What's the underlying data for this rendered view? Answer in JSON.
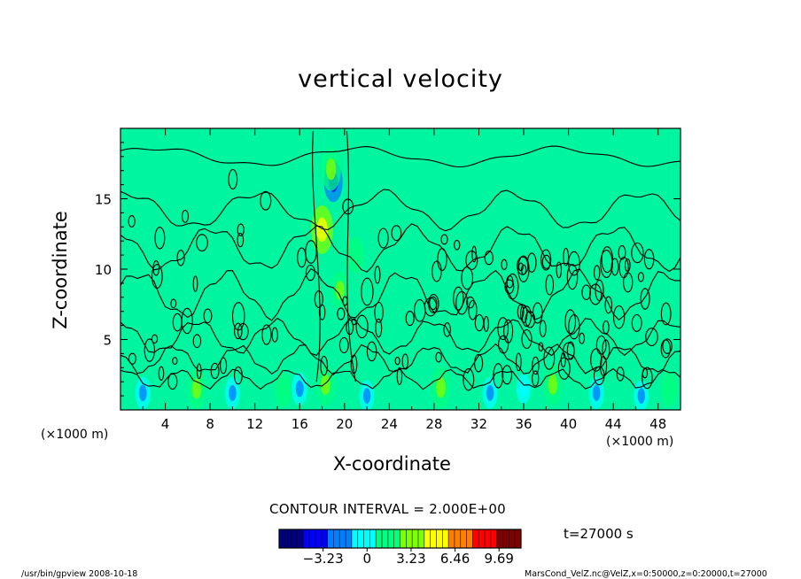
{
  "chart_data": {
    "type": "heatmap",
    "title": "vertical velocity",
    "xlabel": "X-coordinate",
    "ylabel": "Z-coordinate",
    "x_unit": "(×1000 m)",
    "z_unit": "(×1000 m)",
    "xlim": [
      0,
      50
    ],
    "ylim": [
      0,
      20
    ],
    "x_ticks": [
      4,
      8,
      12,
      16,
      20,
      24,
      28,
      32,
      36,
      40,
      44,
      48
    ],
    "y_ticks": [
      5,
      10,
      15
    ],
    "contour_interval": "CONTOUR INTERVAL = 2.000E+00",
    "time_label": "t=27000 s",
    "colorbar": {
      "ticks": [
        -3.23,
        0,
        3.23,
        6.46,
        9.69
      ],
      "tick_labels": [
        "−3.23",
        "0",
        "3.23",
        "6.46",
        "9.69"
      ],
      "range": [
        -6.46,
        11.3
      ],
      "colors": [
        "#00007f",
        "#0000ff",
        "#007fff",
        "#00ffff",
        "#00ff7f",
        "#7fff00",
        "#ffff00",
        "#ff7f00",
        "#ff0000",
        "#7f0000"
      ]
    },
    "field_background_color": "#00f5a0",
    "updraft_features": [
      {
        "x": 6.8,
        "z": 1.5,
        "w": 3.0
      },
      {
        "x": 14.5,
        "z": 1.4,
        "w": 2.0
      },
      {
        "x": 18.0,
        "z": 12.8,
        "w": 4.5
      },
      {
        "x": 18.3,
        "z": 1.8,
        "w": 3.2
      },
      {
        "x": 19.6,
        "z": 8.5,
        "w": 2.5
      },
      {
        "x": 21.0,
        "z": 11.0,
        "w": 2.2
      },
      {
        "x": 28.6,
        "z": 1.6,
        "w": 3.2
      },
      {
        "x": 38.6,
        "z": 1.8,
        "w": 3.0
      },
      {
        "x": 49.0,
        "z": 1.5,
        "w": 2.2
      },
      {
        "x": 18.8,
        "z": 17.1,
        "w": 3.5
      }
    ],
    "downdraft_features": [
      {
        "x": 2.0,
        "z": 1.2,
        "w": -1.5
      },
      {
        "x": 10.0,
        "z": 1.2,
        "w": -1.4
      },
      {
        "x": 16.0,
        "z": 1.5,
        "w": -1.6
      },
      {
        "x": 19.0,
        "z": 16.2,
        "w": -3.0
      },
      {
        "x": 22.0,
        "z": 1.0,
        "w": -1.2
      },
      {
        "x": 33.0,
        "z": 1.2,
        "w": -1.3
      },
      {
        "x": 36.0,
        "z": 1.5,
        "w": -1.0
      },
      {
        "x": 42.5,
        "z": 1.2,
        "w": -1.4
      },
      {
        "x": 46.5,
        "z": 1.0,
        "w": -1.2
      }
    ]
  },
  "footer": {
    "left": "/usr/bin/gpview   2008-10-18",
    "right": "MarsCond_VelZ.nc@VelZ,x=0:50000,z=0:20000,t=27000"
  }
}
